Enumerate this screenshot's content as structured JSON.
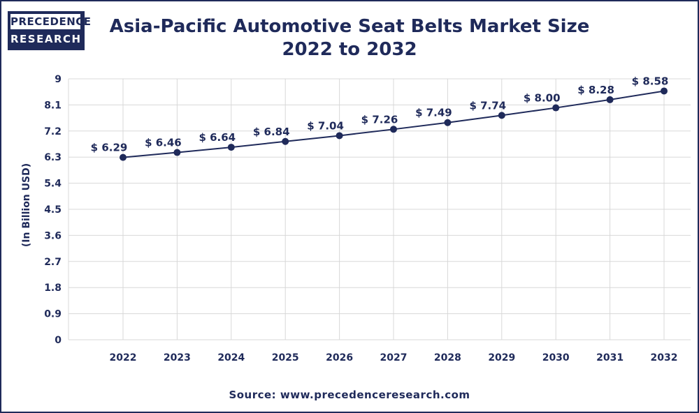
{
  "logo": {
    "line1": "PRECEDENCE",
    "line2": "RESEARCH"
  },
  "title_line1": "Asia-Pacific Automotive Seat Belts Market Size",
  "title_line2": "2022 to 2032",
  "source": "Source: www.precedenceresearch.com",
  "colors": {
    "navy": "#1f2a5a",
    "grid": "#d8d8d8",
    "background": "#ffffff"
  },
  "chart_data": {
    "type": "line",
    "title": "Asia-Pacific Automotive Seat Belts Market Size 2022 to 2032",
    "xlabel": "",
    "ylabel": "(In Billion USD)",
    "ylim": [
      0,
      9
    ],
    "yticks": [
      "0",
      "0.9",
      "1.8",
      "2.7",
      "3.6",
      "4.5",
      "5.4",
      "6.3",
      "7.2",
      "8.1",
      "9"
    ],
    "grid": true,
    "x": [
      "2022",
      "2023",
      "2024",
      "2025",
      "2026",
      "2027",
      "2028",
      "2029",
      "2030",
      "2031",
      "2032"
    ],
    "series": [
      {
        "values": [
          6.29,
          6.46,
          6.64,
          6.84,
          7.04,
          7.26,
          7.49,
          7.74,
          8.0,
          8.28,
          8.58
        ],
        "labels": [
          "$ 6.29",
          "$ 6.46",
          "$ 6.64",
          "$ 6.84",
          "$ 7.04",
          "$ 7.26",
          "$ 7.49",
          "$ 7.74",
          "$ 8.00",
          "$ 8.28",
          "$ 8.58"
        ]
      }
    ]
  }
}
